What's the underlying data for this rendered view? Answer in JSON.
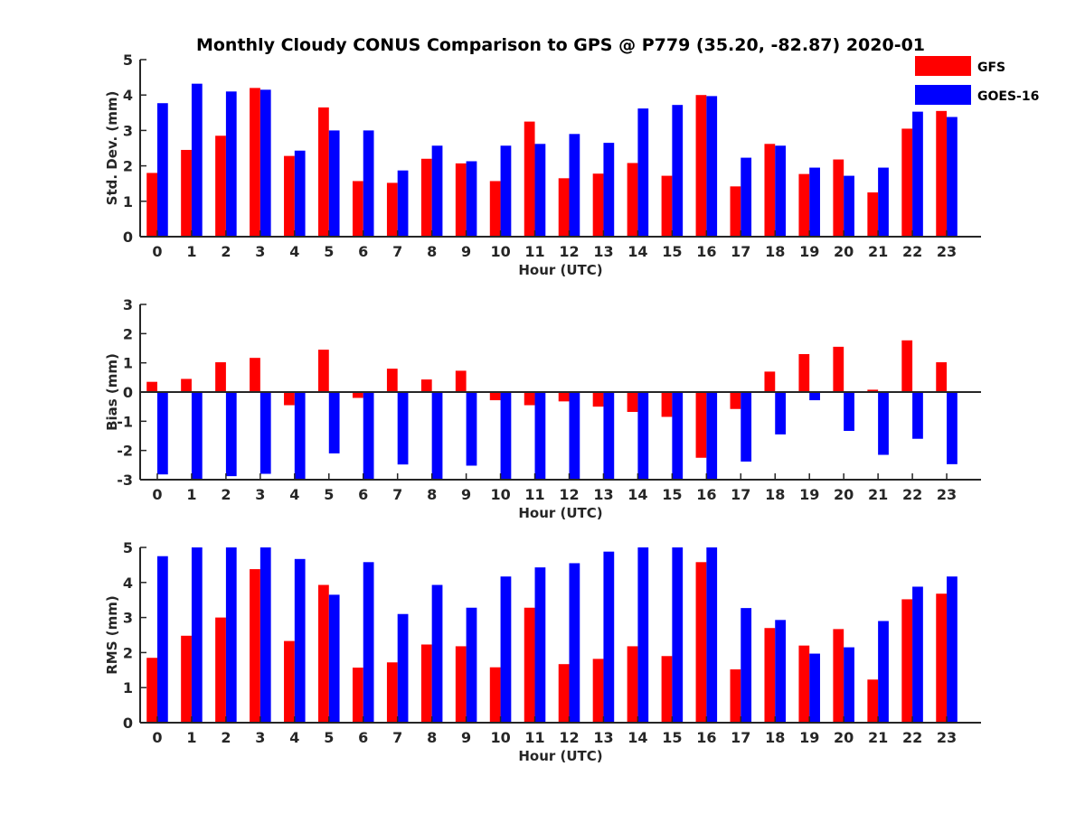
{
  "figure": {
    "title": "Monthly Cloudy CONUS Comparison to GPS @ P779 (35.20, -82.87) 2020-01"
  },
  "legend": {
    "position": "top-right",
    "entries": [
      {
        "name": "GFS",
        "color": "#ff0000"
      },
      {
        "name": "GOES-16",
        "color": "#0000ff"
      }
    ]
  },
  "chart_data": [
    {
      "type": "bar",
      "xlabel": "Hour (UTC)",
      "ylabel": "Std. Dev. (mm)",
      "ylim": [
        0,
        5
      ],
      "yticks": [
        0,
        1,
        2,
        3,
        4,
        5
      ],
      "categories": [
        "0",
        "1",
        "2",
        "3",
        "4",
        "5",
        "6",
        "7",
        "8",
        "9",
        "10",
        "11",
        "12",
        "13",
        "14",
        "15",
        "16",
        "17",
        "18",
        "19",
        "20",
        "21",
        "22",
        "23"
      ],
      "series": [
        {
          "name": "GFS",
          "color": "#ff0000",
          "values": [
            1.8,
            2.45,
            2.85,
            4.2,
            2.28,
            3.65,
            1.57,
            1.52,
            2.2,
            2.07,
            1.57,
            3.25,
            1.65,
            1.78,
            2.08,
            1.72,
            4.0,
            1.42,
            2.62,
            1.77,
            2.18,
            1.25,
            3.05,
            3.55
          ]
        },
        {
          "name": "GOES-16",
          "color": "#0000ff",
          "values": [
            3.77,
            4.32,
            4.1,
            4.15,
            2.43,
            3.0,
            3.0,
            1.87,
            2.57,
            2.13,
            2.57,
            2.62,
            2.9,
            2.65,
            3.62,
            3.72,
            3.97,
            2.23,
            2.57,
            1.95,
            1.72,
            1.95,
            3.53,
            3.38
          ]
        }
      ]
    },
    {
      "type": "bar",
      "xlabel": "Hour (UTC)",
      "ylabel": "Bias (mm)",
      "ylim": [
        -3,
        3
      ],
      "yticks": [
        -3,
        -2,
        -1,
        0,
        1,
        2,
        3
      ],
      "categories": [
        "0",
        "1",
        "2",
        "3",
        "4",
        "5",
        "6",
        "7",
        "8",
        "9",
        "10",
        "11",
        "12",
        "13",
        "14",
        "15",
        "16",
        "17",
        "18",
        "19",
        "20",
        "21",
        "22",
        "23"
      ],
      "series": [
        {
          "name": "GFS",
          "color": "#ff0000",
          "values": [
            0.35,
            0.45,
            1.02,
            1.17,
            -0.45,
            1.45,
            -0.2,
            0.8,
            0.43,
            0.73,
            -0.28,
            -0.45,
            -0.32,
            -0.5,
            -0.68,
            -0.85,
            -2.25,
            -0.58,
            0.7,
            1.3,
            1.55,
            0.08,
            1.77,
            1.02
          ]
        },
        {
          "name": "GOES-16",
          "color": "#0000ff",
          "values": [
            -2.82,
            -3.0,
            -2.88,
            -2.8,
            -3.0,
            -2.1,
            -3.0,
            -2.48,
            -3.0,
            -2.52,
            -3.0,
            -3.0,
            -3.0,
            -3.0,
            -3.0,
            -3.0,
            -3.0,
            -2.38,
            -1.45,
            -0.28,
            -1.33,
            -2.15,
            -1.6,
            -2.47
          ]
        }
      ]
    },
    {
      "type": "bar",
      "xlabel": "Hour (UTC)",
      "ylabel": "RMS (mm)",
      "ylim": [
        0,
        5
      ],
      "yticks": [
        0,
        1,
        2,
        3,
        4,
        5
      ],
      "categories": [
        "0",
        "1",
        "2",
        "3",
        "4",
        "5",
        "6",
        "7",
        "8",
        "9",
        "10",
        "11",
        "12",
        "13",
        "14",
        "15",
        "16",
        "17",
        "18",
        "19",
        "20",
        "21",
        "22",
        "23"
      ],
      "series": [
        {
          "name": "GFS",
          "color": "#ff0000",
          "values": [
            1.85,
            2.48,
            3.0,
            4.38,
            2.33,
            3.93,
            1.57,
            1.72,
            2.23,
            2.18,
            1.58,
            3.28,
            1.67,
            1.82,
            2.18,
            1.9,
            4.58,
            1.52,
            2.7,
            2.2,
            2.67,
            1.23,
            3.52,
            3.68
          ]
        },
        {
          "name": "GOES-16",
          "color": "#0000ff",
          "values": [
            4.75,
            5.0,
            5.0,
            5.0,
            4.67,
            3.65,
            4.58,
            3.1,
            3.93,
            3.28,
            4.17,
            4.43,
            4.55,
            4.88,
            5.0,
            5.0,
            5.0,
            3.27,
            2.93,
            1.97,
            2.15,
            2.9,
            3.88,
            4.17
          ]
        }
      ]
    }
  ]
}
